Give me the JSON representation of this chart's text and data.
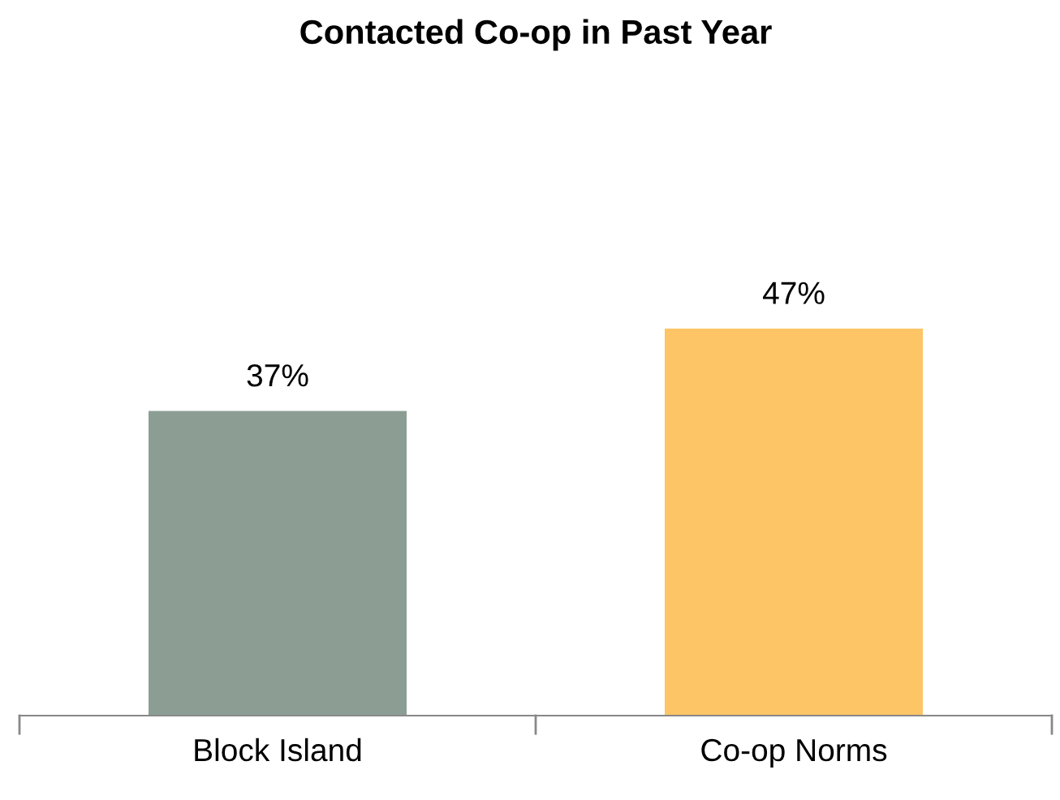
{
  "chart_data": {
    "type": "bar",
    "title": "Contacted Co-op in Past Year",
    "categories": [
      "Block Island",
      "Co-op Norms"
    ],
    "values": [
      37,
      47
    ],
    "colors": [
      "#8c9e94",
      "#fdc566"
    ],
    "value_labels": [
      "37%",
      "47%"
    ]
  }
}
